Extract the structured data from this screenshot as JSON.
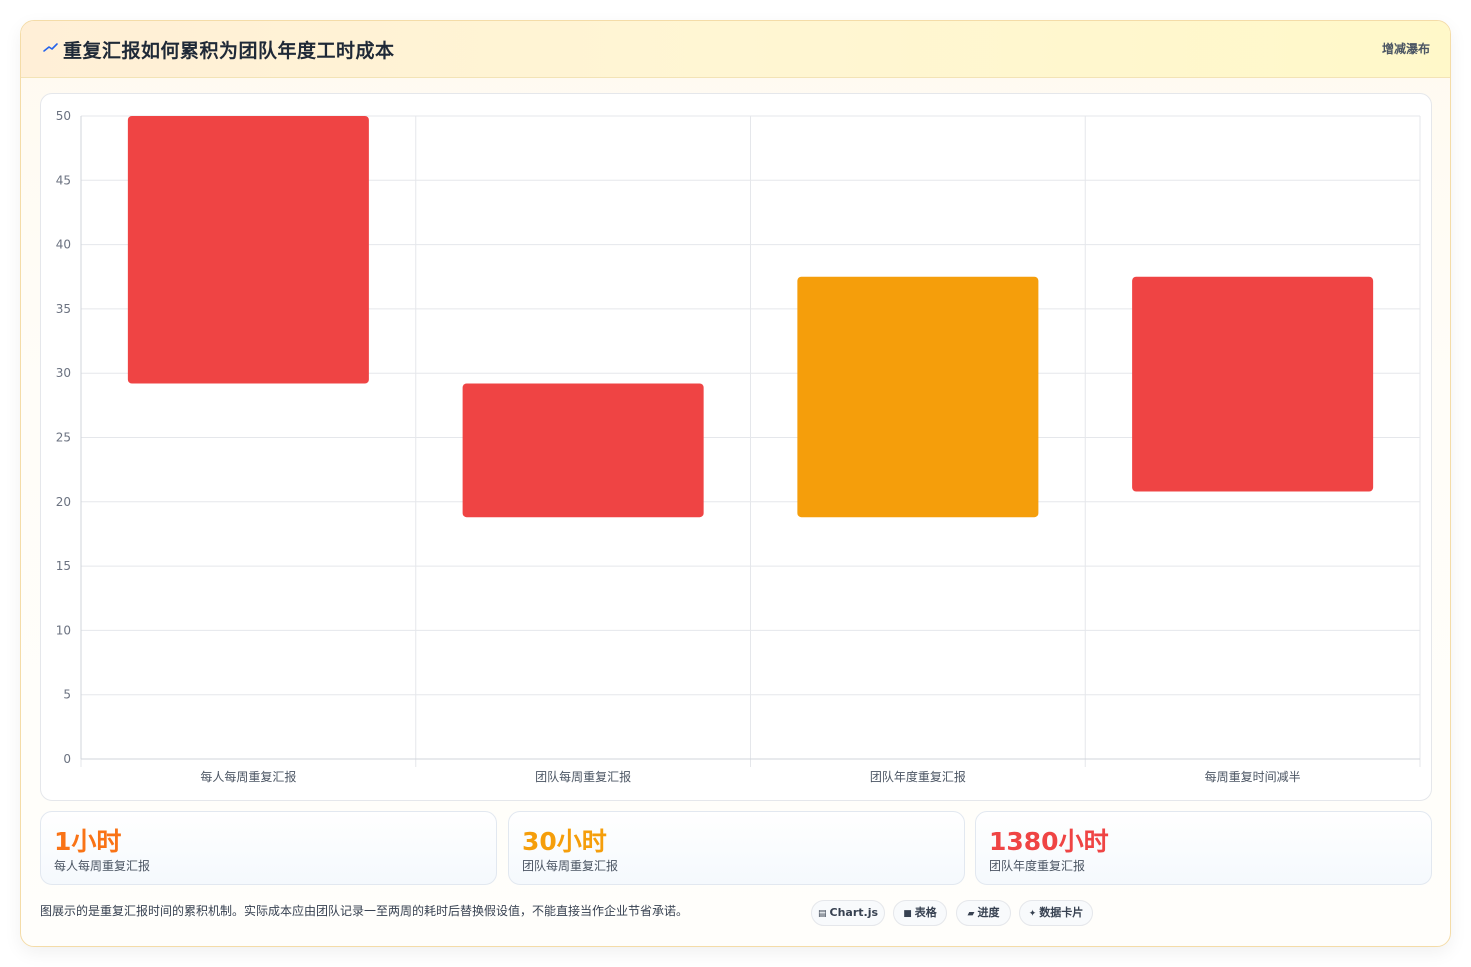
{
  "header": {
    "icon": "trend-line-icon",
    "title": "重复汇报如何累积为团队年度工时成本",
    "tag": "增减瀑布"
  },
  "chart_data": {
    "type": "bar",
    "subtype": "floating-waterfall",
    "categories": [
      "每人每周重复汇报",
      "团队每周重复汇报",
      "团队年度重复汇报",
      "每周重复时间减半"
    ],
    "series": [
      {
        "ranges": [
          [
            29.2,
            50
          ],
          [
            18.8,
            29.2
          ],
          [
            18.8,
            37.5
          ],
          [
            20.8,
            37.5
          ]
        ],
        "colors": [
          "#ef4444",
          "#ef4444",
          "#f59e0b",
          "#ef4444"
        ]
      }
    ],
    "yticks": [
      0,
      5,
      10,
      15,
      20,
      25,
      30,
      35,
      40,
      45,
      50
    ],
    "ylim": [
      0,
      50
    ],
    "grid": true,
    "title": "",
    "xlabel": "",
    "ylabel": ""
  },
  "stats": [
    {
      "value": "1小时",
      "label": "每人每周重复汇报",
      "color": "#f97316"
    },
    {
      "value": "30小时",
      "label": "团队每周重复汇报",
      "color": "#f59e0b"
    },
    {
      "value": "1380小时",
      "label": "团队年度重复汇报",
      "color": "#ef4444"
    }
  ],
  "footnote": "图展示的是重复汇报时间的累积机制。实际成本应由团队记录一至两周的耗时后替换假设值，不能直接当作企业节省承诺。",
  "chips": [
    {
      "icon": "chart-icon",
      "glyph": "▤",
      "label": "Chart.js"
    },
    {
      "icon": "table-icon",
      "glyph": "■",
      "label": "表格"
    },
    {
      "icon": "progress-icon",
      "glyph": "▰",
      "label": "进度"
    },
    {
      "icon": "sparkle-icon",
      "glyph": "✦",
      "label": "数据卡片"
    }
  ]
}
